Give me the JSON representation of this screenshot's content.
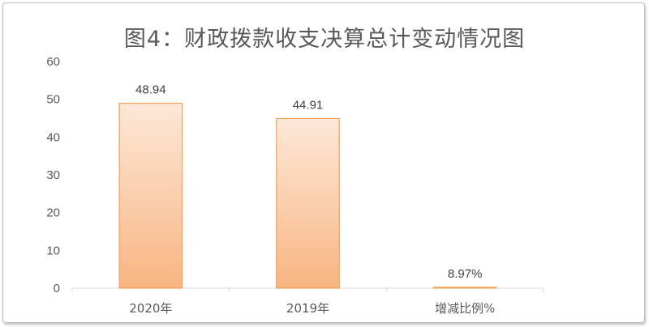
{
  "chart_data": {
    "type": "bar",
    "title": "图4：财政拨款收支决算总计变动情况图",
    "categories": [
      "2020年",
      "2019年",
      "增减比例%"
    ],
    "values": [
      48.94,
      44.91,
      0.0897
    ],
    "data_labels": [
      "48.94",
      "44.91",
      "8.97%"
    ],
    "yticks": [
      "0",
      "10",
      "20",
      "30",
      "40",
      "50",
      "60"
    ],
    "ylim": [
      0,
      60
    ],
    "grid": false,
    "legend": "none",
    "colors": {
      "bar_top": "#FDE8D8",
      "bar_bottom": "#F8B582",
      "bar_border": "#F0A05A",
      "axis": "#D9D9D9",
      "text": "#595959"
    }
  }
}
